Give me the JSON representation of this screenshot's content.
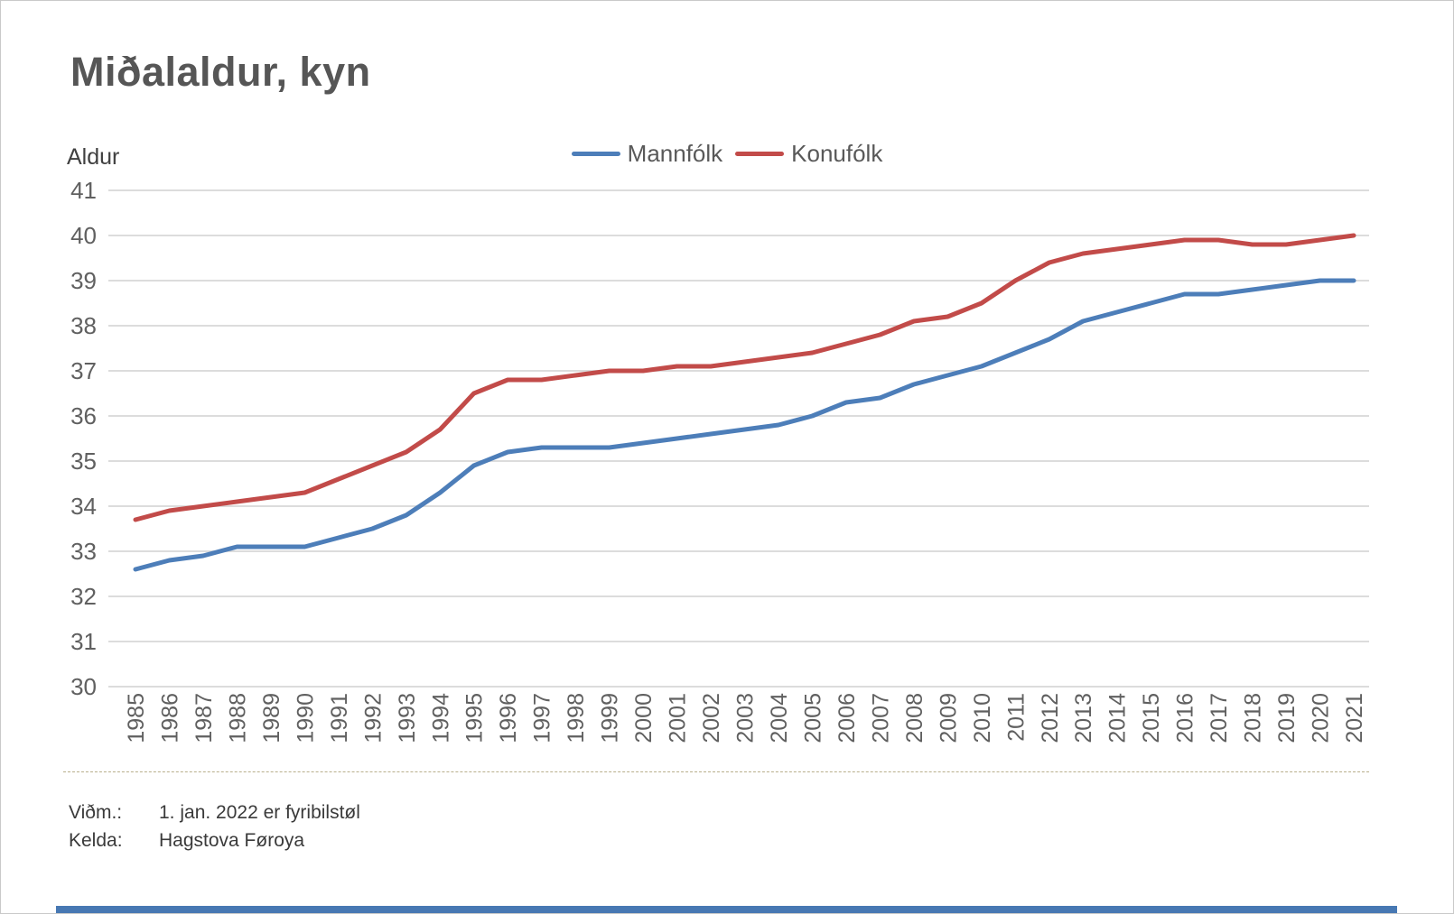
{
  "page": {
    "title": "Miðalaldur, kyn",
    "footnotes": [
      {
        "label": "Viðm.:",
        "text": "1. jan. 2022 er fyribilstøl"
      },
      {
        "label": "Kelda:",
        "text": "Hagstova Føroya"
      }
    ]
  },
  "colors": {
    "series_men": "#4d7eb9",
    "series_women": "#c24b49",
    "gridline": "#dcdcdc",
    "axis_text": "#606060",
    "title_text": "#565656",
    "y_axis_title_text": "#404040",
    "legend_text": "#595959",
    "footnote_text": "#3a3a3a",
    "divider": "#b9af8c",
    "bottom_bar": "#4778b3"
  },
  "chart_data": {
    "type": "line",
    "title": "Miðalaldur, kyn",
    "xlabel": "",
    "ylabel": "Aldur",
    "ylim": [
      30,
      41
    ],
    "y_ticks": [
      30,
      31,
      32,
      33,
      34,
      35,
      36,
      37,
      38,
      39,
      40,
      41
    ],
    "grid": true,
    "legend_position": "top-center",
    "x": [
      1985,
      1986,
      1987,
      1988,
      1989,
      1990,
      1991,
      1992,
      1993,
      1994,
      1995,
      1996,
      1997,
      1998,
      1999,
      2000,
      2001,
      2002,
      2003,
      2004,
      2005,
      2006,
      2007,
      2008,
      2009,
      2010,
      2011,
      2012,
      2013,
      2014,
      2015,
      2016,
      2017,
      2018,
      2019,
      2020,
      2021
    ],
    "series": [
      {
        "name": "Mannfólk",
        "color": "#4d7eb9",
        "values": [
          32.6,
          32.8,
          32.9,
          33.1,
          33.1,
          33.1,
          33.3,
          33.5,
          33.8,
          34.3,
          34.9,
          35.2,
          35.3,
          35.3,
          35.3,
          35.4,
          35.5,
          35.6,
          35.7,
          35.8,
          36.0,
          36.3,
          36.4,
          36.7,
          36.9,
          37.1,
          37.4,
          37.7,
          38.1,
          38.3,
          38.5,
          38.7,
          38.7,
          38.8,
          38.9,
          39.0,
          39.0
        ]
      },
      {
        "name": "Konufólk",
        "color": "#c24b49",
        "values": [
          33.7,
          33.9,
          34.0,
          34.1,
          34.2,
          34.3,
          34.6,
          34.9,
          35.2,
          35.7,
          36.5,
          36.8,
          36.8,
          36.9,
          37.0,
          37.0,
          37.1,
          37.1,
          37.2,
          37.3,
          37.4,
          37.6,
          37.8,
          38.1,
          38.2,
          38.5,
          39.0,
          39.4,
          39.6,
          39.7,
          39.8,
          39.9,
          39.9,
          39.8,
          39.8,
          39.9,
          40.0
        ]
      }
    ]
  }
}
